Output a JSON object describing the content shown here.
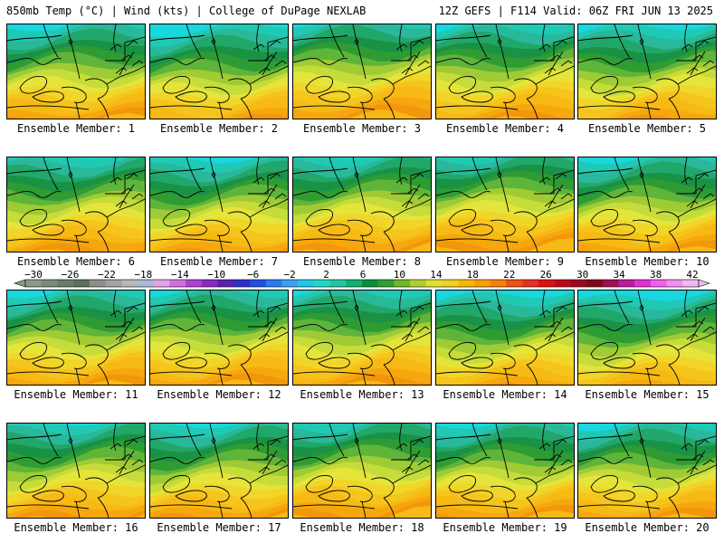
{
  "header": {
    "left": "850mb Temp (°C) | Wind (kts) | College of DuPage NEXLAB",
    "right": "12Z GEFS | F114 Valid: 06Z FRI JUN 13 2025"
  },
  "panels": [
    {
      "member": 1,
      "label": "Ensemble Member: 1",
      "warmth": 0.05
    },
    {
      "member": 2,
      "label": "Ensemble Member: 2",
      "warmth": 0.2
    },
    {
      "member": 3,
      "label": "Ensemble Member: 3",
      "warmth": -0.1
    },
    {
      "member": 4,
      "label": "Ensemble Member: 4",
      "warmth": 0.05
    },
    {
      "member": 5,
      "label": "Ensemble Member: 5",
      "warmth": 0.15
    },
    {
      "member": 6,
      "label": "Ensemble Member: 6",
      "warmth": 0.0
    },
    {
      "member": 7,
      "label": "Ensemble Member: 7",
      "warmth": 0.1
    },
    {
      "member": 8,
      "label": "Ensemble Member: 8",
      "warmth": -0.05
    },
    {
      "member": 9,
      "label": "Ensemble Member: 9",
      "warmth": -0.15
    },
    {
      "member": 10,
      "label": "Ensemble Member: 10",
      "warmth": 0.05
    },
    {
      "member": 11,
      "label": "Ensemble Member: 11",
      "warmth": 0.05
    },
    {
      "member": 12,
      "label": "Ensemble Member: 12",
      "warmth": 0.0
    },
    {
      "member": 13,
      "label": "Ensemble Member: 13",
      "warmth": 0.0
    },
    {
      "member": 14,
      "label": "Ensemble Member: 14",
      "warmth": 0.2
    },
    {
      "member": 15,
      "label": "Ensemble Member: 15",
      "warmth": 0.25
    },
    {
      "member": 16,
      "label": "Ensemble Member: 16",
      "warmth": 0.0
    },
    {
      "member": 17,
      "label": "Ensemble Member: 17",
      "warmth": 0.05
    },
    {
      "member": 18,
      "label": "Ensemble Member: 18",
      "warmth": -0.1
    },
    {
      "member": 19,
      "label": "Ensemble Member: 19",
      "warmth": 0.0
    },
    {
      "member": 20,
      "label": "Ensemble Member: 20",
      "warmth": 0.05
    }
  ],
  "colorbar": {
    "labels": [
      "−30",
      "−26",
      "−22",
      "−18",
      "−14",
      "−10",
      "−6",
      "−2",
      "2",
      "6",
      "10",
      "14",
      "18",
      "22",
      "26",
      "30",
      "34",
      "38",
      "42"
    ],
    "colors": [
      "#8a9a8a",
      "#7a8c7a",
      "#6a7d6a",
      "#5f6f5f",
      "#8e8e8e",
      "#a3a3a3",
      "#b8b8b8",
      "#a8b8d8",
      "#e8a0e8",
      "#d070e0",
      "#b040d0",
      "#8a28c0",
      "#5a20b0",
      "#3030c8",
      "#2050e0",
      "#2a7af0",
      "#3aa0f0",
      "#20c8e8",
      "#20d8c8",
      "#20c8a0",
      "#10b070",
      "#089040",
      "#30a030",
      "#70b828",
      "#b0d030",
      "#e0e030",
      "#f0d020",
      "#f8b800",
      "#f8a000",
      "#f88000",
      "#f05010",
      "#e83020",
      "#e01010",
      "#c00818",
      "#a00820",
      "#800818",
      "#a01050",
      "#c018a0",
      "#e030d0",
      "#f060f0",
      "#f090f0",
      "#f0b8f0"
    ]
  },
  "palette": {
    "levels": [
      "#19d7df",
      "#1fc9b4",
      "#29b89a",
      "#22a76a",
      "#1a9246",
      "#2f9c33",
      "#5fb43a",
      "#9fcb34",
      "#c5dc3a",
      "#e4e43a",
      "#f1d528",
      "#f6c51d",
      "#f7b913",
      "#f6a70e",
      "#f2960c"
    ]
  }
}
